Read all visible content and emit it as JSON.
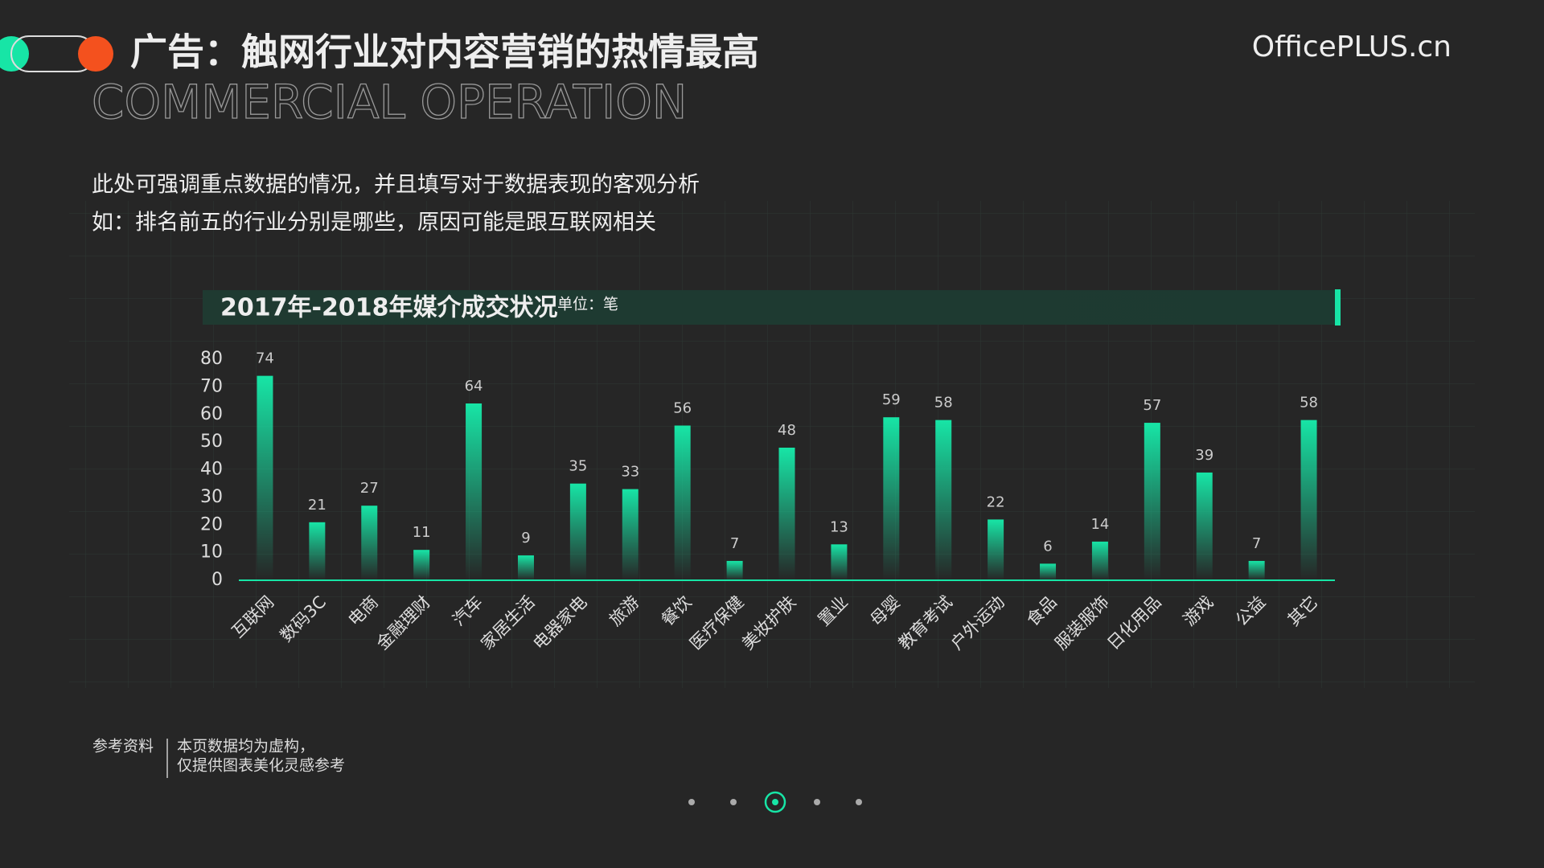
{
  "header": {
    "title": "广告：触网行业对内容营销的热情最高",
    "subtitle": "COMMERCIAL OPERATION",
    "brand": "OfficePLUS.cn"
  },
  "description": [
    "此处可强调重点数据的情况，并且填写对于数据表现的客观分析",
    "如：排名前五的行业分别是哪些，原因可能是跟互联网相关"
  ],
  "chart_data": {
    "type": "bar",
    "title": "2017年-2018年媒介成交状况",
    "unit": "单位：笔",
    "categories": [
      "互联网",
      "数码3C",
      "电商",
      "金融理财",
      "汽车",
      "家居生活",
      "电器家电",
      "旅游",
      "餐饮",
      "医疗保健",
      "美妆护肤",
      "置业",
      "母婴",
      "教育考试",
      "户外运动",
      "食品",
      "服装服饰",
      "日化用品",
      "游戏",
      "公益",
      "其它"
    ],
    "values": [
      74,
      21,
      27,
      11,
      64,
      9,
      35,
      33,
      56,
      7,
      48,
      13,
      59,
      58,
      22,
      6,
      14,
      57,
      39,
      7,
      58
    ],
    "color": "#17e5a6",
    "ylim": [
      0,
      80
    ],
    "yticks": [
      0,
      10,
      20,
      30,
      40,
      50,
      60,
      70,
      80
    ]
  },
  "footer": {
    "label": "参考资料",
    "notes": [
      "本页数据均为虚构，",
      "仅提供图表美化灵感参考"
    ]
  }
}
